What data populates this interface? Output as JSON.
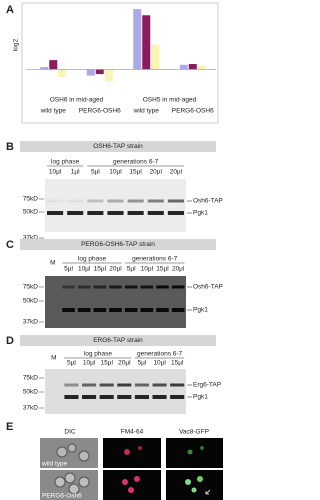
{
  "panel_labels": [
    "A",
    "B",
    "C",
    "D",
    "E"
  ],
  "chart_data": {
    "type": "bar",
    "y_label": "log2",
    "group_labels": [
      "OSH6 in mid-aged",
      "OSH5 in mid-aged"
    ],
    "categories": [
      "wild type",
      "PERG6-OSH6",
      "wild type",
      "PERG6-OSH6"
    ],
    "series": [
      {
        "color": "#a9a9ec",
        "values": [
          0.15,
          -0.4,
          3.9,
          0.3
        ]
      },
      {
        "color": "#8b1a5e",
        "values": [
          0.6,
          -0.3,
          3.5,
          0.35
        ]
      },
      {
        "color": "#fbf4b4",
        "values": [
          -0.5,
          -0.8,
          1.6,
          0.25
        ]
      }
    ],
    "ylim": [
      -1.2,
      4.1
    ]
  },
  "blots": [
    {
      "title": "OSH6-TAP strain",
      "phases": [
        {
          "name": "log phase",
          "lanes": [
            "10µl",
            "1µl"
          ]
        },
        {
          "name": "generations 6-7",
          "lanes": [
            "5µl",
            "10µl",
            "15µl",
            "20µl",
            "20µl"
          ]
        }
      ],
      "markers": [
        "75kD",
        "50kD",
        "37kD"
      ],
      "bands": [
        "Osh6-TAP",
        "Pgk1"
      ]
    },
    {
      "title": "PERG6-OSH6-TAP strain",
      "marker_lane": "M",
      "phases": [
        {
          "name": "log phase",
          "lanes": [
            "5µl",
            "10µl",
            "15µl",
            "20µl"
          ]
        },
        {
          "name": "generations 6-7",
          "lanes": [
            "5µl",
            "10µl",
            "15µl",
            "20µl"
          ]
        }
      ],
      "markers": [
        "75kD",
        "50kD",
        "37kD"
      ],
      "bands": [
        "Osh6-TAP",
        "Pgk1"
      ]
    },
    {
      "title": "ERG6-TAP strain",
      "marker_lane": "M",
      "phases": [
        {
          "name": "log phase",
          "lanes": [
            "5µl",
            "10µl",
            "15µl",
            "20µl"
          ]
        },
        {
          "name": "generations 6-7",
          "lanes": [
            "5µl",
            "10µl",
            "15µl"
          ]
        }
      ],
      "markers": [
        "75kD",
        "50kD",
        "37kD"
      ],
      "bands": [
        "Erg6-TAP",
        "Pgk1"
      ]
    }
  ],
  "microscopy": {
    "columns": [
      "DIC",
      "FM4-64",
      "Vac8-GFP"
    ],
    "rows": [
      "wild type",
      "PERG6-Osh6"
    ]
  }
}
